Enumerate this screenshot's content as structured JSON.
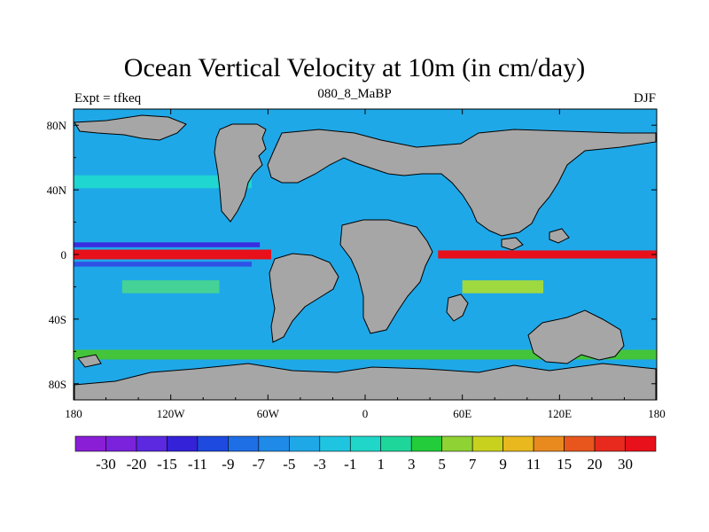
{
  "title": "Ocean Vertical Velocity at 10m (in cm/day)",
  "subtitle": "080_8_MaBP",
  "left_string": "Expt = tfkeq",
  "right_string": "DJF",
  "map": {
    "projection": "cylindrical-equidistant",
    "lon_range": [
      -180,
      180
    ],
    "lat_range": [
      -90,
      90
    ],
    "land_color": "#a6a6a6",
    "coast_color": "#000000",
    "ocean_background_color": "#1fa8e8",
    "x_ticks": [
      {
        "value": -180,
        "label": "180"
      },
      {
        "value": -120,
        "label": "120W"
      },
      {
        "value": -60,
        "label": "60W"
      },
      {
        "value": 0,
        "label": "0"
      },
      {
        "value": 60,
        "label": "60E"
      },
      {
        "value": 120,
        "label": "120E"
      },
      {
        "value": 180,
        "label": "180"
      }
    ],
    "y_ticks": [
      {
        "value": 80,
        "label": "80N"
      },
      {
        "value": 40,
        "label": "40N"
      },
      {
        "value": 0,
        "label": "0"
      },
      {
        "value": -40,
        "label": "40S"
      },
      {
        "value": -80,
        "label": "80S"
      }
    ],
    "upwelling_bands": [
      {
        "name": "equatorial-pacific-upwelling",
        "lons": [
          -180,
          -58
        ],
        "lat": 0,
        "width": 6,
        "color": "#e8101a"
      },
      {
        "name": "equatorial-indian-upwelling",
        "lons": [
          45,
          180
        ],
        "lat": 0,
        "width": 5,
        "color": "#e8101a"
      },
      {
        "name": "equatorial-pacific-downwelling-n",
        "lons": [
          -180,
          -65
        ],
        "lat": 6,
        "width": 3,
        "color": "#3a2de0"
      },
      {
        "name": "equatorial-pacific-downwelling-s",
        "lons": [
          -180,
          -70
        ],
        "lat": -6,
        "width": 3,
        "color": "#2f52e6"
      },
      {
        "name": "southern-ocean-green-band",
        "lons": [
          -180,
          180
        ],
        "lat": -62,
        "width": 6,
        "color": "#44c43a"
      },
      {
        "name": "subtropical-south-green",
        "lons": [
          -150,
          -90
        ],
        "lat": -20,
        "width": 8,
        "color": "#45d296"
      },
      {
        "name": "north-pacific-cyan",
        "lons": [
          -180,
          -70
        ],
        "lat": 45,
        "width": 8,
        "color": "#1fd6d0"
      },
      {
        "name": "indian-south-green",
        "lons": [
          60,
          110
        ],
        "lat": -20,
        "width": 8,
        "color": "#9fd940"
      }
    ]
  },
  "colorbar": {
    "labels": [
      "-30",
      "-20",
      "-15",
      "-11",
      "-9",
      "-7",
      "-5",
      "-3",
      "-1",
      "1",
      "3",
      "5",
      "7",
      "9",
      "11",
      "15",
      "20",
      "30"
    ],
    "colors": [
      "#8a1ed6",
      "#7a22dc",
      "#5c28e0",
      "#3322d8",
      "#1e4ae0",
      "#1e6ee6",
      "#1f8ae8",
      "#1fa8e8",
      "#1fc4e0",
      "#1fd6c8",
      "#1fd69a",
      "#22cc3a",
      "#8fd233",
      "#c8d21e",
      "#e8b81e",
      "#e88a1e",
      "#e8561e",
      "#e82a1e",
      "#e8101a"
    ]
  }
}
